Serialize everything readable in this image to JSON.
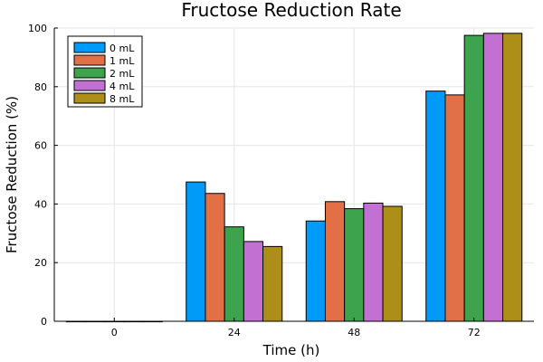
{
  "chart_data": {
    "type": "bar",
    "title": "Fructose Reduction Rate",
    "xlabel": "Time (h)",
    "ylabel": "Fructose Reduction (%)",
    "categories": [
      "0",
      "24",
      "48",
      "72"
    ],
    "ylim": [
      0,
      100
    ],
    "yticks": [
      "0",
      "20",
      "40",
      "60",
      "80",
      "100"
    ],
    "grid": true,
    "legend_position": "top-left",
    "series": [
      {
        "name": "0 mL",
        "color": "#009af9",
        "values": [
          0,
          47.5,
          34.2,
          78.5
        ]
      },
      {
        "name": "1 mL",
        "color": "#e26f46",
        "values": [
          0,
          43.6,
          40.8,
          77.2
        ]
      },
      {
        "name": "2 mL",
        "color": "#3da44d",
        "values": [
          0,
          32.2,
          38.4,
          97.5
        ]
      },
      {
        "name": "4 mL",
        "color": "#c271d2",
        "values": [
          0,
          27.2,
          40.3,
          98.2
        ]
      },
      {
        "name": "8 mL",
        "color": "#ac8e18",
        "values": [
          0,
          25.5,
          39.2,
          98.2
        ]
      }
    ]
  }
}
